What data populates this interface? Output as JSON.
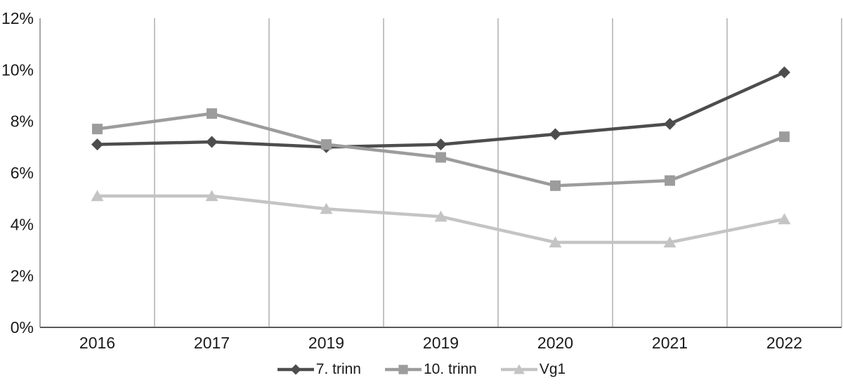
{
  "chart_data": {
    "type": "line",
    "title": "",
    "categories": [
      "2016",
      "2017",
      "2019",
      "2019",
      "2020",
      "2021",
      "2022"
    ],
    "series": [
      {
        "name": "7. trinn",
        "marker": "diamond",
        "color": "#4d4d4d",
        "values": [
          7.1,
          7.2,
          7.0,
          7.1,
          7.5,
          7.9,
          9.9
        ]
      },
      {
        "name": "10. trinn",
        "marker": "square",
        "color": "#9c9c9c",
        "values": [
          7.7,
          8.3,
          7.1,
          6.6,
          5.5,
          5.7,
          7.4
        ]
      },
      {
        "name": "Vg1",
        "marker": "triangle",
        "color": "#c4c4c4",
        "values": [
          5.1,
          5.1,
          4.6,
          4.3,
          3.3,
          3.3,
          4.2
        ]
      }
    ],
    "y_ticks": [
      {
        "value": 0,
        "label": "0%"
      },
      {
        "value": 2,
        "label": "2%"
      },
      {
        "value": 4,
        "label": "4%"
      },
      {
        "value": 6,
        "label": "6%"
      },
      {
        "value": 8,
        "label": "8%"
      },
      {
        "value": 10,
        "label": "10%"
      },
      {
        "value": 12,
        "label": "12%"
      }
    ],
    "ylim": [
      0,
      12
    ],
    "grid": "vertical",
    "legend_position": "bottom",
    "styles": {
      "background": "#ffffff",
      "text_color": "#1a1a1a",
      "gridline_color": "#9b9b9b",
      "left_axis_color": "#8a8a8a",
      "bottom_axis_color": "#595959"
    }
  }
}
